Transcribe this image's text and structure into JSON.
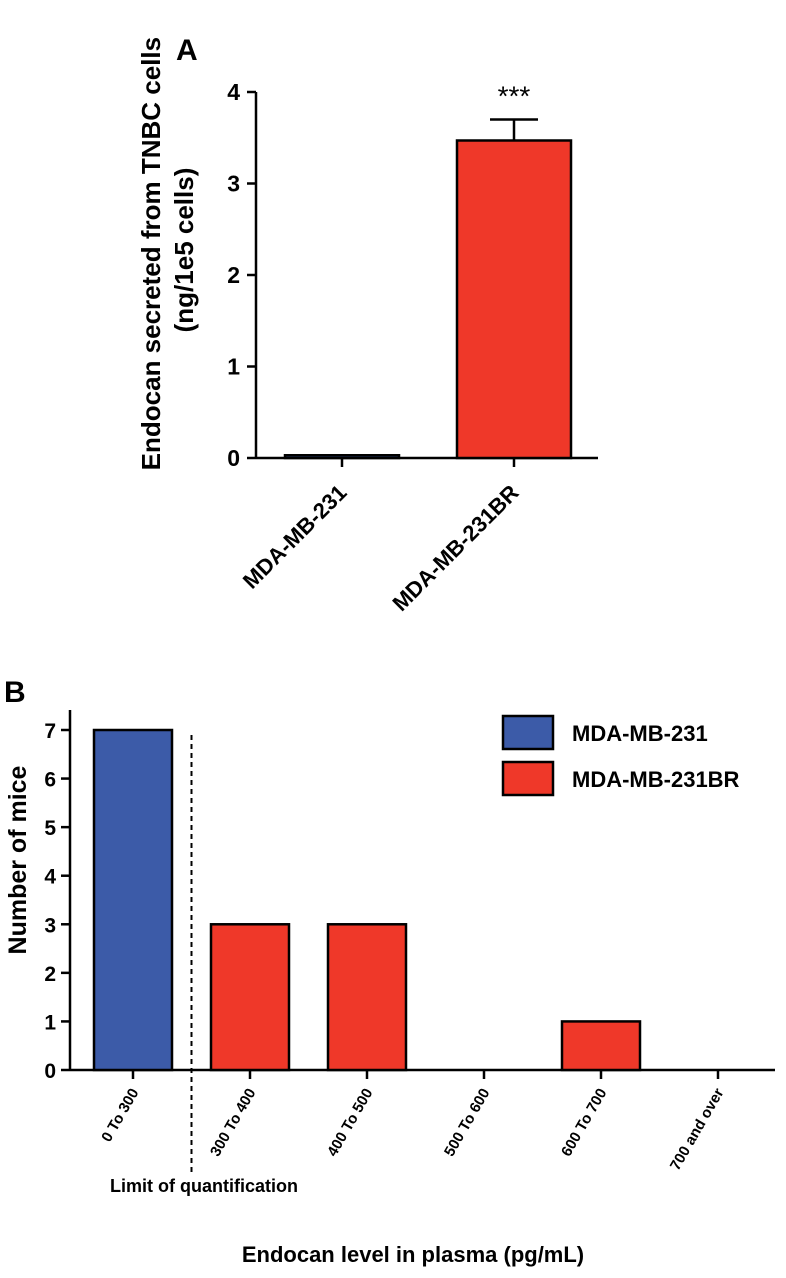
{
  "chart_data": [
    {
      "panel": "A",
      "type": "bar",
      "ylabel": "Endocan secreted from TNBC cells\n(ng/1e5 cells)",
      "ylim": [
        0,
        4
      ],
      "yticks": [
        0,
        1,
        2,
        3,
        4
      ],
      "categories": [
        "MDA-MB-231",
        "MDA-MB-231BR"
      ],
      "values": [
        0.03,
        3.47
      ],
      "errors": [
        0,
        0.23
      ],
      "colors": [
        "#3c5ba8",
        "#ef3829"
      ],
      "significance": {
        "category": "MDA-MB-231BR",
        "label": "***"
      }
    },
    {
      "panel": "B",
      "type": "bar",
      "ylabel": "Number of mice",
      "xlabel": "Endocan level in plasma (pg/mL)",
      "ylim": [
        0,
        7
      ],
      "yticks": [
        0,
        1,
        2,
        3,
        4,
        5,
        6,
        7
      ],
      "categories": [
        "0 To 300",
        "300 To 400",
        "400 To 500",
        "500 To 600",
        "600 To 700",
        "700 and over"
      ],
      "series": [
        {
          "name": "MDA-MB-231",
          "color": "#3c5ba8",
          "values": [
            7,
            0,
            0,
            0,
            0,
            0
          ]
        },
        {
          "name": "MDA-MB-231BR",
          "color": "#ef3829",
          "values": [
            0,
            3,
            3,
            0,
            1,
            0
          ]
        }
      ],
      "annotation": "Limit of quantification",
      "legend_position": "top-right"
    }
  ]
}
